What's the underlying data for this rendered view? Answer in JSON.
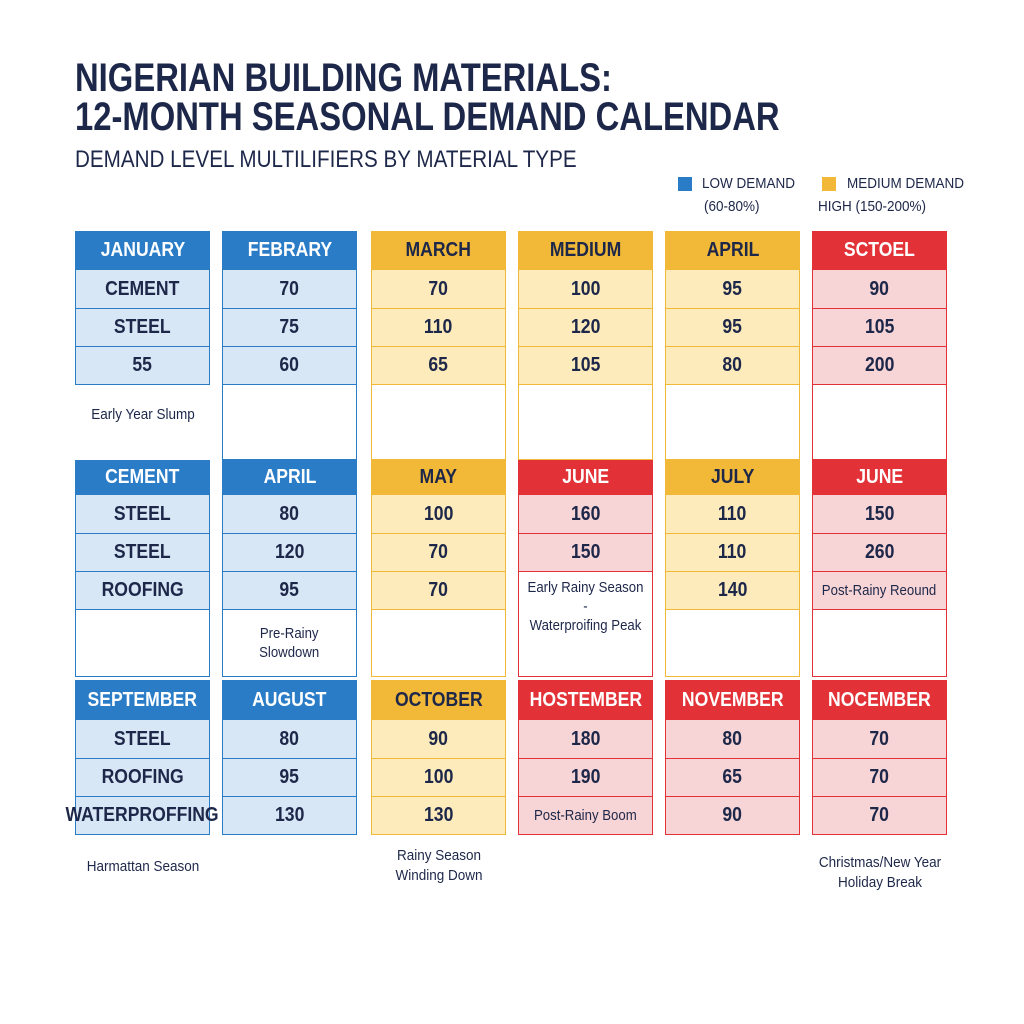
{
  "header": {
    "title_line1": "NIGERIAN BUILDING MATERIALS:",
    "title_line2": "12-MONTH SEASONAL DEMAND CALENDAR",
    "subtitle": "DEMAND LEVEL MULTILIFIERS BY MATERIAL TYPE"
  },
  "legend": [
    {
      "label": "LOW DEMAND",
      "sub": "(60-80%)",
      "color": "#2a7cc7"
    },
    {
      "label": "MEDIUM DEMAND",
      "sub": "HIGH (150-200%)",
      "color": "#f2b938"
    }
  ],
  "colors": {
    "blue": {
      "header": "#2a7cc7",
      "cell": "#d8e7f5",
      "border": "#2a7cc7",
      "text": "#ffffff"
    },
    "yellow": {
      "header": "#f2b938",
      "cell": "#fdebbb",
      "border": "#f2b938",
      "text": "#1d2749"
    },
    "red": {
      "header": "#e23237",
      "cell": "#f7d4d5",
      "border": "#e23237",
      "text": "#ffffff"
    }
  },
  "chart_data": {
    "type": "table",
    "title": "NIGERIAN BUILDING MATERIALS: 12-MONTH SEASONAL DEMAND CALENDAR",
    "subtitle": "DEMAND LEVEL MULTILIFIERS BY MATERIAL TYPE",
    "blocks": [
      {
        "columns": [
          {
            "theme": "blue",
            "header": "JANUARY",
            "cells": [
              {
                "text": "CEMENT"
              },
              {
                "text": "STEEL"
              },
              {
                "text": "55"
              }
            ],
            "blank": false
          },
          {
            "theme": "blue",
            "header": "FEBRARY",
            "cells": [
              {
                "text": "70"
              },
              {
                "text": "75"
              },
              {
                "text": "60"
              }
            ],
            "blank": true
          },
          {
            "theme": "yellow",
            "header": "MARCH",
            "cells": [
              {
                "text": "70"
              },
              {
                "text": "110"
              },
              {
                "text": "65"
              }
            ],
            "blank": true
          },
          {
            "theme": "yellow",
            "header": "MEDIUM",
            "cells": [
              {
                "text": "100"
              },
              {
                "text": "120"
              },
              {
                "text": "105"
              }
            ],
            "blank": true
          },
          {
            "theme": "yellow",
            "header": "APRIL",
            "cells": [
              {
                "text": "95"
              },
              {
                "text": "95"
              },
              {
                "text": "80"
              }
            ],
            "blank": true
          },
          {
            "theme": "red",
            "header": "SCTOEL",
            "cells": [
              {
                "text": "90"
              },
              {
                "text": "105"
              },
              {
                "text": "200"
              }
            ],
            "blank": true
          }
        ]
      },
      {
        "columns": [
          {
            "theme": "blue",
            "header": "CEMENT",
            "cells": [
              {
                "text": "STEEL"
              },
              {
                "text": "STEEL"
              },
              {
                "text": "ROOFING"
              }
            ],
            "blank": true
          },
          {
            "theme": "blue",
            "header": "APRIL",
            "cells": [
              {
                "text": "80"
              },
              {
                "text": "120"
              },
              {
                "text": "95"
              }
            ],
            "blank": true,
            "blank_note": "Pre-Rainy\nSlowdown"
          },
          {
            "theme": "yellow",
            "header": "MAY",
            "cells": [
              {
                "text": "100"
              },
              {
                "text": "70"
              },
              {
                "text": "70"
              }
            ],
            "blank": true
          },
          {
            "theme": "red",
            "header": "JUNE",
            "cells": [
              {
                "text": "160"
              },
              {
                "text": "150"
              }
            ],
            "blank": true,
            "blank_note": "Early Rainy Season -\nWaterproifing Peak",
            "note_top": true
          },
          {
            "theme": "yellow",
            "header": "JULY",
            "cells": [
              {
                "text": "110"
              },
              {
                "text": "110"
              },
              {
                "text": "140"
              }
            ],
            "blank": true
          },
          {
            "theme": "red",
            "header": "JUNE",
            "cells": [
              {
                "text": "150"
              },
              {
                "text": "260"
              },
              {
                "text": "Post-Rainy Reound",
                "note": true
              }
            ],
            "blank": true
          }
        ]
      },
      {
        "columns": [
          {
            "theme": "blue",
            "header": "SEPTEMBER",
            "cells": [
              {
                "text": "STEEL"
              },
              {
                "text": "ROOFING"
              },
              {
                "text": "WATERPROFFING"
              }
            ],
            "blank": false
          },
          {
            "theme": "blue",
            "header": "AUGUST",
            "cells": [
              {
                "text": "80"
              },
              {
                "text": "95"
              },
              {
                "text": "130"
              }
            ],
            "blank": false
          },
          {
            "theme": "yellow",
            "header": "OCTOBER",
            "cells": [
              {
                "text": "90"
              },
              {
                "text": "100"
              },
              {
                "text": "130"
              }
            ],
            "blank": false
          },
          {
            "theme": "red",
            "header": "HOSTEMBER",
            "cells": [
              {
                "text": "180"
              },
              {
                "text": "190"
              },
              {
                "text": "Post-Rainy Boom",
                "note": true
              }
            ],
            "blank": false
          },
          {
            "theme": "red",
            "header": "NOVEMBER",
            "cells": [
              {
                "text": "80"
              },
              {
                "text": "65"
              },
              {
                "text": "90"
              }
            ],
            "blank": false
          },
          {
            "theme": "red",
            "header": "NOCEMBER",
            "cells": [
              {
                "text": "70"
              },
              {
                "text": "70"
              },
              {
                "text": "70"
              }
            ],
            "blank": false
          }
        ]
      }
    ],
    "notes": [
      {
        "text": "Early Year Slump",
        "block": 0,
        "column": 0
      },
      {
        "text": "Harmattan Season",
        "block": 2,
        "column": 0
      },
      {
        "text": "Rainy Season\nWinding Down",
        "block": 2,
        "column": 2
      },
      {
        "text": "Christmas/New Year\nHoliday Break",
        "block": 2,
        "column": 5
      }
    ]
  }
}
